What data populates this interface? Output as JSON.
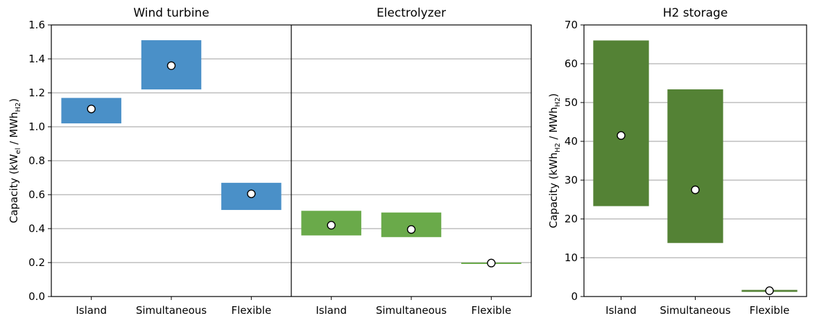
{
  "colors": {
    "wind": "#4a90c8",
    "electrolyzer": "#6aaa4a",
    "storage": "#548235"
  },
  "chart_data": [
    {
      "type": "bar",
      "ylabel": "Capacity (kW_el / MWh_H2)",
      "ylim": [
        0,
        1.6
      ],
      "yticks": [
        "0.0",
        "0.2",
        "0.4",
        "0.6",
        "0.8",
        "1.0",
        "1.2",
        "1.4",
        "1.6"
      ],
      "grid": "horizontal",
      "panels": [
        {
          "title": "Wind turbine",
          "color": "#4a90c8",
          "categories": [
            "Island",
            "Simultaneous",
            "Flexible"
          ],
          "low": [
            1.02,
            1.22,
            0.51
          ],
          "high": [
            1.17,
            1.51,
            0.67
          ],
          "point": [
            1.105,
            1.36,
            0.605
          ]
        },
        {
          "title": "Electrolyzer",
          "color": "#6aaa4a",
          "categories": [
            "Island",
            "Simultaneous",
            "Flexible"
          ],
          "low": [
            0.36,
            0.35,
            0.192
          ],
          "high": [
            0.505,
            0.495,
            0.2
          ],
          "point": [
            0.42,
            0.395,
            0.197
          ]
        }
      ]
    },
    {
      "type": "bar",
      "ylabel": "Capacity (kWh_H2 / MWh_H2)",
      "ylim": [
        0,
        70
      ],
      "yticks": [
        "0",
        "10",
        "20",
        "30",
        "40",
        "50",
        "60",
        "70"
      ],
      "grid": "horizontal",
      "panels": [
        {
          "title": "H2 storage",
          "color": "#548235",
          "categories": [
            "Island",
            "Simultaneous",
            "Flexible"
          ],
          "low": [
            23.3,
            13.8,
            1.2
          ],
          "high": [
            66,
            53.4,
            1.7
          ],
          "point": [
            41.5,
            27.5,
            1.5
          ]
        }
      ]
    }
  ]
}
